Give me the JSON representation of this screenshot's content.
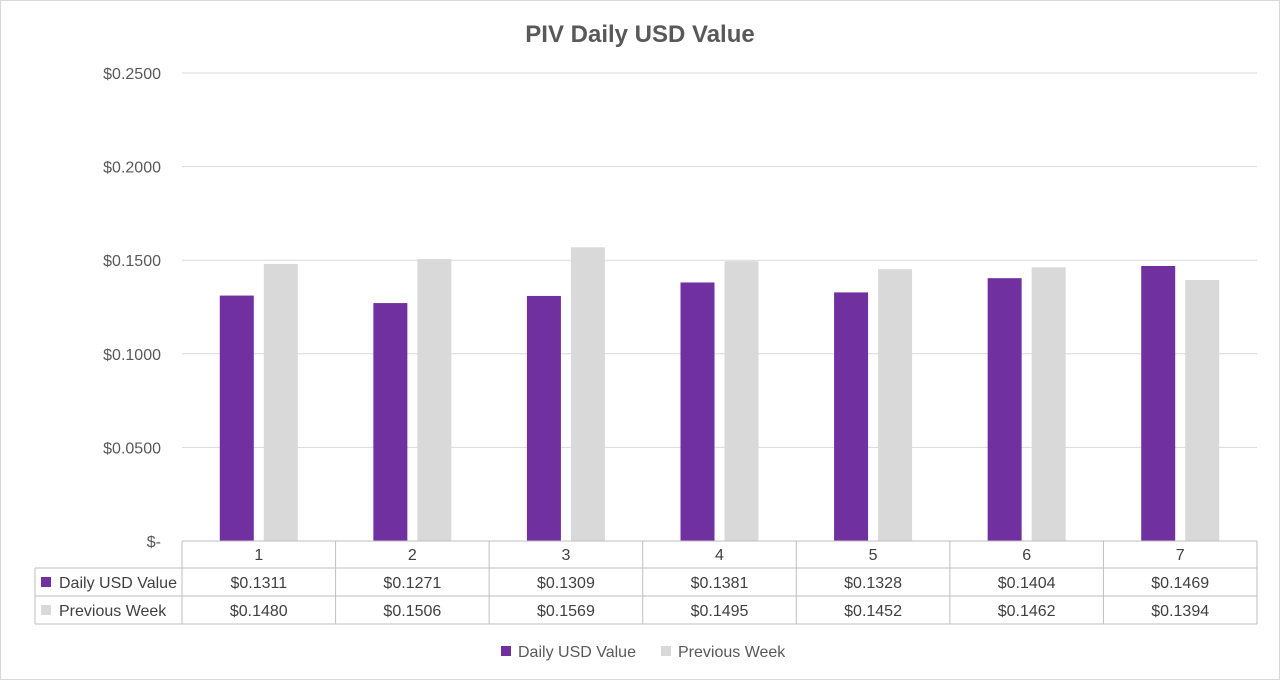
{
  "chart_data": {
    "type": "bar",
    "title": "PIV Daily USD Value",
    "categories": [
      "1",
      "2",
      "3",
      "4",
      "5",
      "6",
      "7"
    ],
    "series": [
      {
        "name": "Daily USD Value",
        "color": "#7030a0",
        "values": [
          0.1311,
          0.1271,
          0.1309,
          0.1381,
          0.1328,
          0.1404,
          0.1469
        ],
        "display": [
          "$0.1311",
          "$0.1271",
          "$0.1309",
          "$0.1381",
          "$0.1328",
          "$0.1404",
          "$0.1469"
        ]
      },
      {
        "name": "Previous Week",
        "color": "#d9d9d9",
        "values": [
          0.148,
          0.1506,
          0.1569,
          0.1495,
          0.1452,
          0.1462,
          0.1394
        ],
        "display": [
          "$0.1480",
          "$0.1506",
          "$0.1569",
          "$0.1495",
          "$0.1452",
          "$0.1462",
          "$0.1394"
        ]
      }
    ],
    "ylim": [
      0,
      0.25
    ],
    "yticks": [
      {
        "value": 0.25,
        "label": "$0.2500"
      },
      {
        "value": 0.2,
        "label": "$0.2000"
      },
      {
        "value": 0.15,
        "label": "$0.1500"
      },
      {
        "value": 0.1,
        "label": "$0.1000"
      },
      {
        "value": 0.05,
        "label": "$0.0500"
      },
      {
        "value": 0,
        "label": "$-"
      }
    ],
    "grid": true,
    "data_table": true,
    "legend_position": "bottom"
  }
}
